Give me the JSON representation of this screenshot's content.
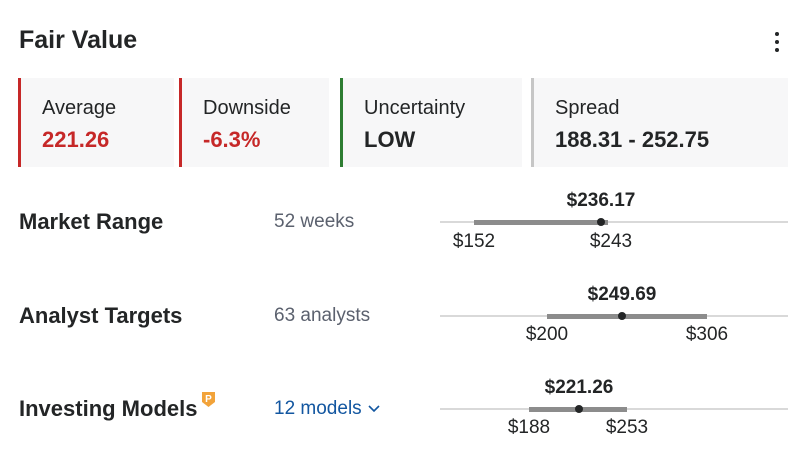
{
  "header": {
    "title": "Fair Value",
    "menu_icon": "kebab-menu-icon"
  },
  "cards": [
    {
      "label": "Average",
      "value": "221.26",
      "border_color": "#c62828",
      "value_color": "#c62828"
    },
    {
      "label": "Downside",
      "value": "-6.3%",
      "border_color": "#c62828",
      "value_color": "#c62828"
    },
    {
      "label": "Uncertainty",
      "value": "LOW",
      "border_color": "#2e7d32",
      "value_color": "#232526"
    },
    {
      "label": "Spread",
      "value": "188.31 - 252.75",
      "border_color": "#c6c6c6",
      "value_color": "#232526"
    }
  ],
  "rows": {
    "market_range": {
      "label": "Market Range",
      "sub": "52 weeks",
      "current": "$236.17",
      "low": "$152",
      "high": "$243",
      "low_value": 152,
      "high_value": 243,
      "current_value": 236.17
    },
    "analyst_targets": {
      "label": "Analyst Targets",
      "sub": "63 analysts",
      "current": "$249.69",
      "low": "$200",
      "high": "$306",
      "low_value": 200,
      "high_value": 306,
      "current_value": 249.69
    },
    "investing_models": {
      "label": "Investing Models",
      "link": "12 models",
      "badge_icon": "pro-badge-icon",
      "chevron_icon": "chevron-down-icon",
      "current": "$221.26",
      "low": "$188",
      "high": "$253",
      "low_value": 188,
      "high_value": 253,
      "current_value": 221.26
    }
  },
  "colors": {
    "track": "#d9d9d9",
    "bar": "#8c8c8c",
    "dot": "#232526",
    "badge": "#f2a33a",
    "link": "#1256a0"
  }
}
